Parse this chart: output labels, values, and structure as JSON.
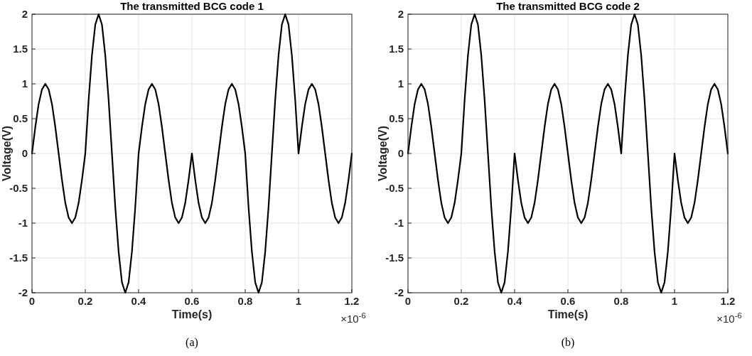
{
  "chart_data": [
    {
      "type": "line",
      "title": "The transmitted BCG code 1",
      "xlabel": "Time(s)",
      "ylabel": "Voltage(V)",
      "line_style": "solid",
      "grid": true,
      "xlim": [
        0,
        1.2
      ],
      "ylim": [
        -2,
        2
      ],
      "xticks": [
        0,
        0.2,
        0.4,
        0.6,
        0.8,
        1,
        1.2
      ],
      "yticks": [
        -2,
        -1.5,
        -1,
        -0.5,
        0,
        0.5,
        1,
        1.5,
        2
      ],
      "annotations": [
        "×10$^{-6}$",
        "(a)"
      ],
      "x": [
        0,
        0.0125,
        0.025,
        0.0375,
        0.05,
        0.0625,
        0.075,
        0.0875,
        0.1,
        0.1125,
        0.125,
        0.1375,
        0.15,
        0.1625,
        0.175,
        0.1875,
        0.2,
        0.2125,
        0.225,
        0.2375,
        0.25,
        0.2625,
        0.275,
        0.2875,
        0.3,
        0.3125,
        0.325,
        0.3375,
        0.35,
        0.3625,
        0.375,
        0.3875,
        0.4,
        0.4125,
        0.425,
        0.4375,
        0.45,
        0.4625,
        0.475,
        0.4875,
        0.5,
        0.5125,
        0.525,
        0.5375,
        0.55,
        0.5625,
        0.575,
        0.5875,
        0.6,
        0.6125,
        0.625,
        0.6375,
        0.65,
        0.6625,
        0.675,
        0.6875,
        0.7,
        0.7125,
        0.725,
        0.7375,
        0.75,
        0.7625,
        0.775,
        0.7875,
        0.8,
        0.8125,
        0.825,
        0.8375,
        0.85,
        0.8625,
        0.875,
        0.8875,
        0.9,
        0.9125,
        0.925,
        0.9375,
        0.95,
        0.9625,
        0.975,
        0.9875,
        1,
        1.0125,
        1.025,
        1.0375,
        1.05,
        1.0625,
        1.075,
        1.0875,
        1.1,
        1.1125,
        1.125,
        1.1375,
        1.15,
        1.1625,
        1.175,
        1.1875,
        1.2
      ],
      "series": [
        {
          "color": "#000000",
          "values": [
            0,
            0.38,
            0.71,
            0.92,
            1,
            0.92,
            0.71,
            0.38,
            0,
            -0.38,
            -0.71,
            -0.92,
            -1,
            -0.92,
            -0.71,
            -0.38,
            0,
            0.77,
            1.41,
            1.85,
            2,
            1.85,
            1.41,
            0.77,
            0,
            -0.77,
            -1.41,
            -1.85,
            -2,
            -1.85,
            -1.41,
            -0.77,
            0,
            0.38,
            0.71,
            0.92,
            1,
            0.92,
            0.71,
            0.38,
            0,
            -0.38,
            -0.71,
            -0.92,
            -1,
            -0.92,
            -0.71,
            -0.38,
            0,
            -0.38,
            -0.71,
            -0.92,
            -1,
            -0.92,
            -0.71,
            -0.38,
            0,
            0.38,
            0.71,
            0.92,
            1,
            0.92,
            0.71,
            0.38,
            0,
            -0.77,
            -1.41,
            -1.85,
            -2,
            -1.85,
            -1.41,
            -0.77,
            0,
            0.77,
            1.41,
            1.85,
            2,
            1.85,
            1.41,
            0.77,
            0,
            0.38,
            0.71,
            0.92,
            1,
            0.92,
            0.71,
            0.38,
            0,
            -0.38,
            -0.71,
            -0.92,
            -1,
            -0.92,
            -0.71,
            -0.38,
            0
          ]
        }
      ]
    },
    {
      "type": "line",
      "title": "The transmitted BCG code 2",
      "xlabel": "Time(s)",
      "ylabel": "Voltage(V)",
      "line_style": "solid",
      "grid": true,
      "xlim": [
        0,
        1.2
      ],
      "ylim": [
        -2,
        2
      ],
      "xticks": [
        0,
        0.2,
        0.4,
        0.6,
        0.8,
        1,
        1.2
      ],
      "yticks": [
        -2,
        -1.5,
        -1,
        -0.5,
        0,
        0.5,
        1,
        1.5,
        2
      ],
      "annotations": [
        "×10$^{-6}$",
        "(b)"
      ],
      "x": [
        0,
        0.0125,
        0.025,
        0.0375,
        0.05,
        0.0625,
        0.075,
        0.0875,
        0.1,
        0.1125,
        0.125,
        0.1375,
        0.15,
        0.1625,
        0.175,
        0.1875,
        0.2,
        0.2125,
        0.225,
        0.2375,
        0.25,
        0.2625,
        0.275,
        0.2875,
        0.3,
        0.3125,
        0.325,
        0.3375,
        0.35,
        0.3625,
        0.375,
        0.3875,
        0.4,
        0.4125,
        0.425,
        0.4375,
        0.45,
        0.4625,
        0.475,
        0.4875,
        0.5,
        0.5125,
        0.525,
        0.5375,
        0.55,
        0.5625,
        0.575,
        0.5875,
        0.6,
        0.6125,
        0.625,
        0.6375,
        0.65,
        0.6625,
        0.675,
        0.6875,
        0.7,
        0.7125,
        0.725,
        0.7375,
        0.75,
        0.7625,
        0.775,
        0.7875,
        0.8,
        0.8125,
        0.825,
        0.8375,
        0.85,
        0.8625,
        0.875,
        0.8875,
        0.9,
        0.9125,
        0.925,
        0.9375,
        0.95,
        0.9625,
        0.975,
        0.9875,
        1,
        1.0125,
        1.025,
        1.0375,
        1.05,
        1.0625,
        1.075,
        1.0875,
        1.1,
        1.1125,
        1.125,
        1.1375,
        1.15,
        1.1625,
        1.175,
        1.1875,
        1.2
      ],
      "series": [
        {
          "color": "#000000",
          "values": [
            0,
            0.38,
            0.71,
            0.92,
            1,
            0.92,
            0.71,
            0.38,
            0,
            -0.38,
            -0.71,
            -0.92,
            -1,
            -0.92,
            -0.71,
            -0.38,
            0,
            0.77,
            1.41,
            1.85,
            2,
            1.85,
            1.41,
            0.77,
            0,
            -0.77,
            -1.41,
            -1.85,
            -2,
            -1.85,
            -1.41,
            -0.77,
            0,
            -0.38,
            -0.71,
            -0.92,
            -1,
            -0.92,
            -0.71,
            -0.38,
            0,
            0.38,
            0.71,
            0.92,
            1,
            0.92,
            0.71,
            0.38,
            0,
            -0.38,
            -0.71,
            -0.92,
            -1,
            -0.92,
            -0.71,
            -0.38,
            0,
            0.38,
            0.71,
            0.92,
            1,
            0.92,
            0.71,
            0.38,
            0,
            0.77,
            1.41,
            1.85,
            2,
            1.85,
            1.41,
            0.77,
            0,
            -0.77,
            -1.41,
            -1.85,
            -2,
            -1.85,
            -1.41,
            -0.77,
            0,
            -0.38,
            -0.71,
            -0.92,
            -1,
            -0.92,
            -0.71,
            -0.38,
            0,
            0.38,
            0.71,
            0.92,
            1,
            0.92,
            0.71,
            0.38,
            0
          ]
        }
      ]
    }
  ]
}
